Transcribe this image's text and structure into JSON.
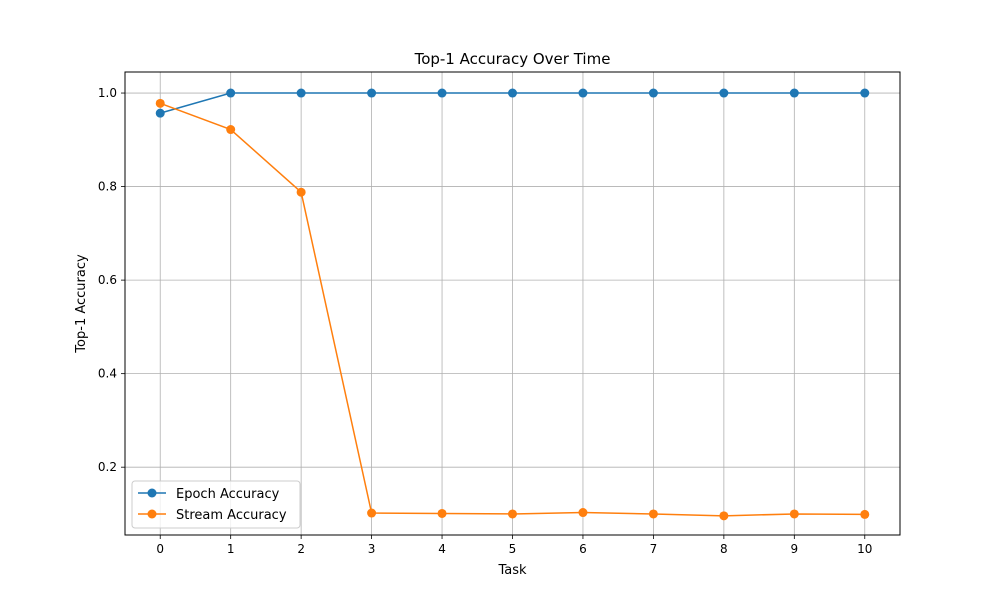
{
  "chart_data": {
    "type": "line",
    "title": "Top-1 Accuracy Over Time",
    "xlabel": "Task",
    "ylabel": "Top-1 Accuracy",
    "x": [
      0,
      1,
      2,
      3,
      4,
      5,
      6,
      7,
      8,
      9,
      10
    ],
    "xticks": [
      "0",
      "1",
      "2",
      "3",
      "4",
      "5",
      "6",
      "7",
      "8",
      "9",
      "10"
    ],
    "yticks": [
      "0.2",
      "0.4",
      "0.6",
      "0.8",
      "1.0"
    ],
    "ytick_values": [
      0.2,
      0.4,
      0.6,
      0.8,
      1.0
    ],
    "xlim": [
      -0.5,
      10.5
    ],
    "ylim": [
      0.055,
      1.045
    ],
    "grid": true,
    "legend_position": "lower-left",
    "series": [
      {
        "name": "Epoch Accuracy",
        "color": "#1f77b4",
        "marker": "circle",
        "values": [
          0.957,
          1.0,
          1.0,
          1.0,
          1.0,
          1.0,
          1.0,
          1.0,
          1.0,
          1.0,
          1.0
        ]
      },
      {
        "name": "Stream Accuracy",
        "color": "#ff7f0e",
        "marker": "circle",
        "values": [
          0.978,
          0.922,
          0.788,
          0.102,
          0.101,
          0.1,
          0.103,
          0.1,
          0.096,
          0.1,
          0.099
        ]
      }
    ]
  }
}
